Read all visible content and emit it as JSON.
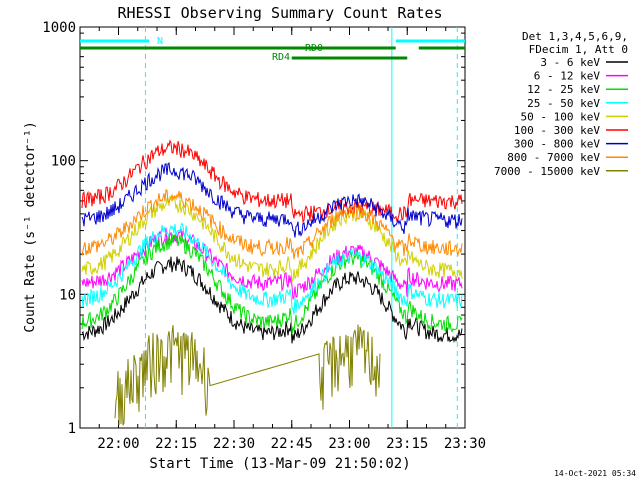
{
  "chart_data": {
    "type": "line",
    "title": "RHESSI Observing Summary Count Rates",
    "xlabel": "Start Time (13-Mar-09 21:50:02)",
    "ylabel": "Count Rate (s⁻¹ detector⁻¹)",
    "y_scale": "log",
    "ylim": [
      1,
      1000
    ],
    "x_ticks": [
      "22:00",
      "22:15",
      "22:30",
      "22:45",
      "23:00",
      "23:15",
      "23:30"
    ],
    "y_ticks": [
      "1",
      "10",
      "100",
      "1000"
    ],
    "footer_stamp": "14-Oct-2021 05:34",
    "legend_header": [
      "Det 1,3,4,5,6,9,",
      "FDecim 1, Att 0"
    ],
    "series": [
      {
        "name": "3 - 6 keV",
        "color": "#000000",
        "baseline": 5,
        "peak1": 17,
        "peak2": 17
      },
      {
        "name": "6 - 12 keV",
        "color": "#ff00ff",
        "baseline": 12,
        "peak1": 28,
        "peak2": 27
      },
      {
        "name": "12 - 25 keV",
        "color": "#00dd00",
        "baseline": 6,
        "peak1": 25,
        "peak2": 24
      },
      {
        "name": "25 - 50 keV",
        "color": "#00ffff",
        "baseline": 9,
        "peak1": 31,
        "peak2": 25
      },
      {
        "name": "50 - 100 keV",
        "color": "#d0d000",
        "baseline": 15,
        "peak1": 48,
        "peak2": 52
      },
      {
        "name": "100 - 300 keV",
        "color": "#ff0000",
        "baseline": 50,
        "peak1": 125,
        "peak2": 58
      },
      {
        "name": "300 - 800 keV",
        "color": "#0000cc",
        "baseline": 36,
        "peak1": 85,
        "peak2": 65
      },
      {
        "name": "800 - 7000 keV",
        "color": "#ff8800",
        "baseline": 22,
        "peak1": 54,
        "peak2": 55
      },
      {
        "name": "7000 - 15000 keV",
        "color": "#808000",
        "baseline": 1,
        "peak1": 3,
        "peak2": 3
      }
    ],
    "flags": [
      {
        "label": "N",
        "color": "#00ffff",
        "segments": [
          [
            "21:50",
            "22:08"
          ],
          [
            "23:12",
            "23:30"
          ]
        ]
      },
      {
        "label": "RD0",
        "color": "#008800",
        "segments": [
          [
            "21:50",
            "23:12"
          ],
          [
            "23:18",
            "23:30"
          ]
        ]
      },
      {
        "label": "RD4",
        "color": "#008800",
        "segments": [
          [
            "22:45",
            "23:15"
          ]
        ]
      }
    ],
    "vlines": [
      {
        "time": "22:07",
        "color": "#00ffff",
        "style": "dashed"
      },
      {
        "time": "23:11",
        "color": "#00ffff",
        "style": "solid"
      },
      {
        "time": "23:28",
        "color": "#00ffff",
        "style": "dashed"
      }
    ]
  }
}
